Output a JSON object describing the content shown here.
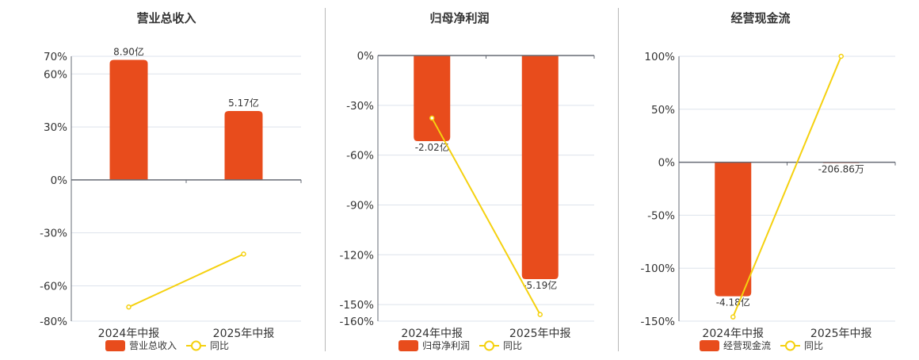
{
  "colors": {
    "bar": "#e84c1c",
    "line": "#f5d10f",
    "axis": "#666b75",
    "grid": "#dde3ec",
    "text": "#333333",
    "title": "#333333",
    "divider": "#b8b8b8"
  },
  "legend": {
    "line_label": "同比"
  },
  "chart_data": [
    {
      "type": "bar",
      "title": "营业总收入",
      "categories": [
        "2024年中报",
        "2025年中报"
      ],
      "series": [
        {
          "name": "营业总收入",
          "type": "bar",
          "values": [
            68,
            39
          ],
          "labels": [
            "8.90亿",
            "5.17亿"
          ],
          "label_pos": "above"
        },
        {
          "name": "同比",
          "type": "line",
          "values": [
            -72,
            -42
          ]
        }
      ],
      "yticks": [
        70,
        60,
        30,
        0,
        -30,
        -60,
        -80
      ],
      "ylim": [
        -80,
        70
      ],
      "ylabel_format": "%",
      "grid": true,
      "legend_position": "bottom"
    },
    {
      "type": "bar",
      "title": "归母净利润",
      "categories": [
        "2024年中报",
        "2025年中报"
      ],
      "series": [
        {
          "name": "归母净利润",
          "type": "bar",
          "values": [
            -51.6,
            -134.7
          ],
          "labels": [
            "-2.02亿",
            "-5.19亿"
          ],
          "label_pos": "below"
        },
        {
          "name": "同比",
          "type": "line",
          "values": [
            -37.7,
            -156
          ]
        }
      ],
      "yticks": [
        0,
        -30,
        -60,
        -90,
        -120,
        -150,
        -160
      ],
      "ylim": [
        -160,
        0
      ],
      "ylabel_format": "%",
      "grid": true,
      "legend_position": "bottom"
    },
    {
      "type": "bar",
      "title": "经营现金流",
      "categories": [
        "2024年中报",
        "2025年中报"
      ],
      "series": [
        {
          "name": "经营现金流",
          "type": "bar",
          "values": [
            -126.5,
            -0.6
          ],
          "labels": [
            "-4.18亿",
            "-206.86万"
          ],
          "label_pos": "below"
        },
        {
          "name": "同比",
          "type": "line",
          "values": [
            -146,
            100
          ]
        }
      ],
      "yticks": [
        100,
        50,
        0,
        -50,
        -100,
        -150
      ],
      "ylim": [
        -150,
        100
      ],
      "ylabel_format": "%",
      "grid": true,
      "legend_position": "bottom"
    }
  ]
}
